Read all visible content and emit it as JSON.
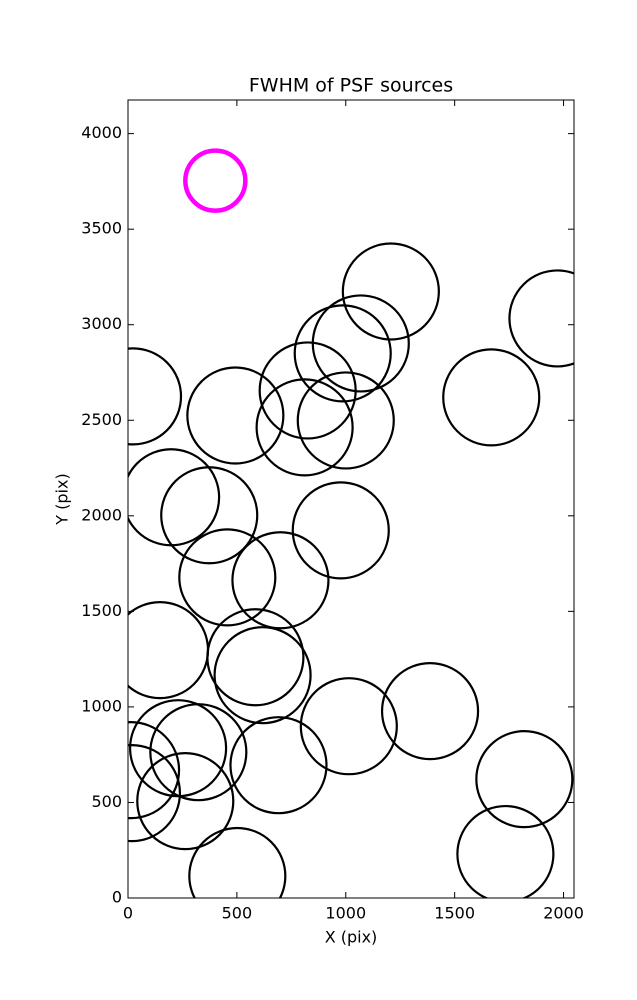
{
  "chart_data": {
    "type": "scatter",
    "title": "FWHM of PSF sources",
    "x_label": "X (pix)",
    "y_label": "Y (pix)",
    "xlim": [
      0,
      2048
    ],
    "ylim": [
      0,
      4176
    ],
    "xticks": [
      0,
      500,
      1000,
      1500,
      2000
    ],
    "yticks": [
      0,
      500,
      1000,
      1500,
      2000,
      2500,
      3000,
      3500,
      4000
    ],
    "series": [
      {
        "color": "#000000",
        "x": [
          1207,
          1972,
          23,
          493,
          1069,
          986,
          825,
          1000,
          811,
          1668,
          198,
          373,
          977,
          456,
          700,
          147,
          585,
          618,
          1387,
          1014,
          230,
          323,
          14,
          18,
          263,
          691,
          1820,
          1733,
          502
        ],
        "values": [
          3174,
          3033,
          2625,
          2525,
          2902,
          2850,
          2656,
          2499,
          2463,
          2620,
          2097,
          2003,
          1924,
          1678,
          1663,
          1297,
          1260,
          1166,
          978,
          899,
          784,
          763,
          669,
          549,
          507,
          695,
          622,
          230,
          115
        ]
      },
      {
        "color": "#ff00ff",
        "x": [
          401
        ],
        "values": [
          3754
        ]
      }
    ]
  }
}
